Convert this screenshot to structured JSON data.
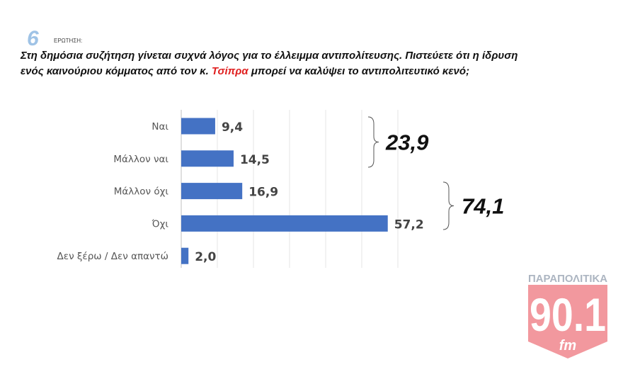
{
  "header": {
    "question_number": "6",
    "question_label": "ΕΡΩΤΗΣΗ:",
    "question_text_before": "Στη δημόσια συζήτηση γίνεται συχνά λόγος για το έλλειμμα αντιπολίτευσης. Πιστεύετε ότι η ίδρυση ενός καινούριου κόμματος από τον κ. ",
    "question_highlight": "Τσίπρα",
    "question_text_after": " μπορεί να καλύψει το αντιπολιτευτικό κενό;",
    "highlight_color": "#e02020"
  },
  "chart_data": {
    "type": "bar",
    "orientation": "horizontal",
    "categories": [
      "Ναι",
      "Μάλλον ναι",
      "Μάλλον όχι",
      "Όχι",
      "Δεν ξέρω / Δεν απαντώ"
    ],
    "values": [
      9.4,
      14.5,
      16.9,
      57.2,
      2.0
    ],
    "value_labels": [
      "9,4",
      "14,5",
      "16,9",
      "57,2",
      "2,0"
    ],
    "xlim": [
      0,
      60
    ],
    "grid": true,
    "bar_color": "#4472c4",
    "groups": [
      {
        "categories": [
          "Ναι",
          "Μάλλον ναι"
        ],
        "total": 23.9,
        "label": "23,9"
      },
      {
        "categories": [
          "Μάλλον όχι",
          "Όχι"
        ],
        "total": 74.1,
        "label": "74,1"
      }
    ]
  },
  "logo": {
    "top_text": "ΠΑΡΑΠΟΛΙΤΙΚΑ",
    "number": "90.1",
    "suffix": "fm",
    "color": "#e8454f"
  }
}
